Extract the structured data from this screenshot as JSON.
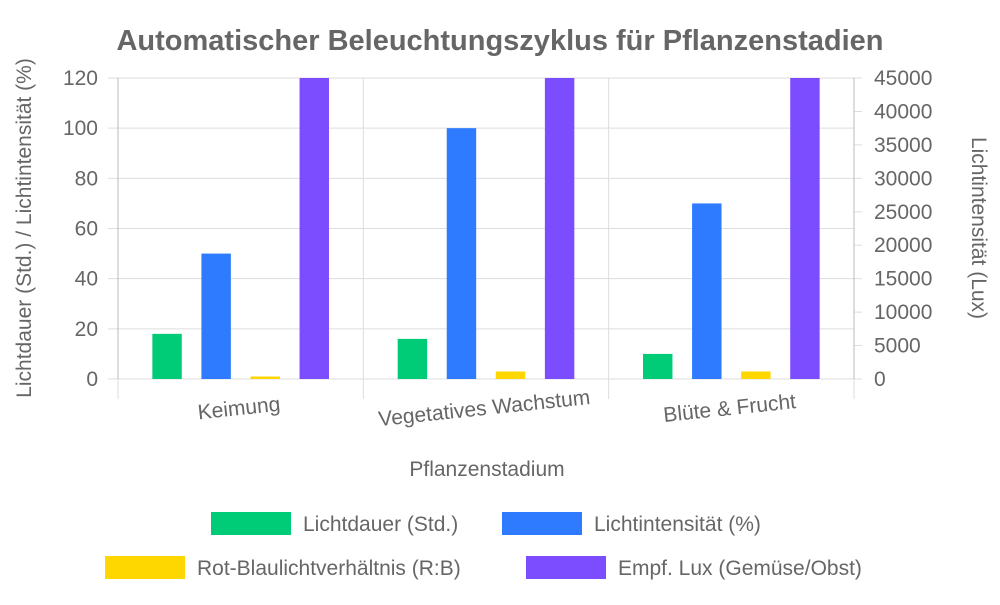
{
  "chart_data": {
    "type": "bar",
    "title": "Automatischer Beleuchtungszyklus für Pflanzenstadien",
    "xlabel": "Pflanzenstadium",
    "ylabel_left": "Lichtdauer (Std.) / Lichtintensität (%)",
    "ylabel_right": "Lichtintensität (Lux)",
    "categories": [
      "Keimung",
      "Vegetatives Wachstum",
      "Blüte & Frucht"
    ],
    "y_left": {
      "min": 0,
      "max": 120,
      "ticks": [
        "0",
        "20",
        "40",
        "60",
        "80",
        "100",
        "120"
      ]
    },
    "y_right": {
      "min": 0,
      "max": 45000,
      "ticks": [
        "0",
        "5000",
        "10000",
        "15000",
        "20000",
        "25000",
        "30000",
        "35000",
        "40000",
        "45000"
      ]
    },
    "grid": true,
    "legend_position": "bottom",
    "series": [
      {
        "name": "Lichtdauer (Std.)",
        "axis": "left",
        "color": "#00cc77",
        "values": [
          18,
          16,
          10
        ]
      },
      {
        "name": "Lichtintensität (%)",
        "axis": "left",
        "color": "#2f7bff",
        "values": [
          50,
          100,
          70
        ]
      },
      {
        "name": "Rot-Blaulichtverhältnis (R:B)",
        "axis": "left",
        "color": "#ffd700",
        "values": [
          1,
          3,
          3
        ]
      },
      {
        "name": "Empf. Lux (Gemüse/Obst)",
        "axis": "right",
        "color": "#7c4dff",
        "values": [
          45000,
          45000,
          45000
        ]
      }
    ]
  }
}
